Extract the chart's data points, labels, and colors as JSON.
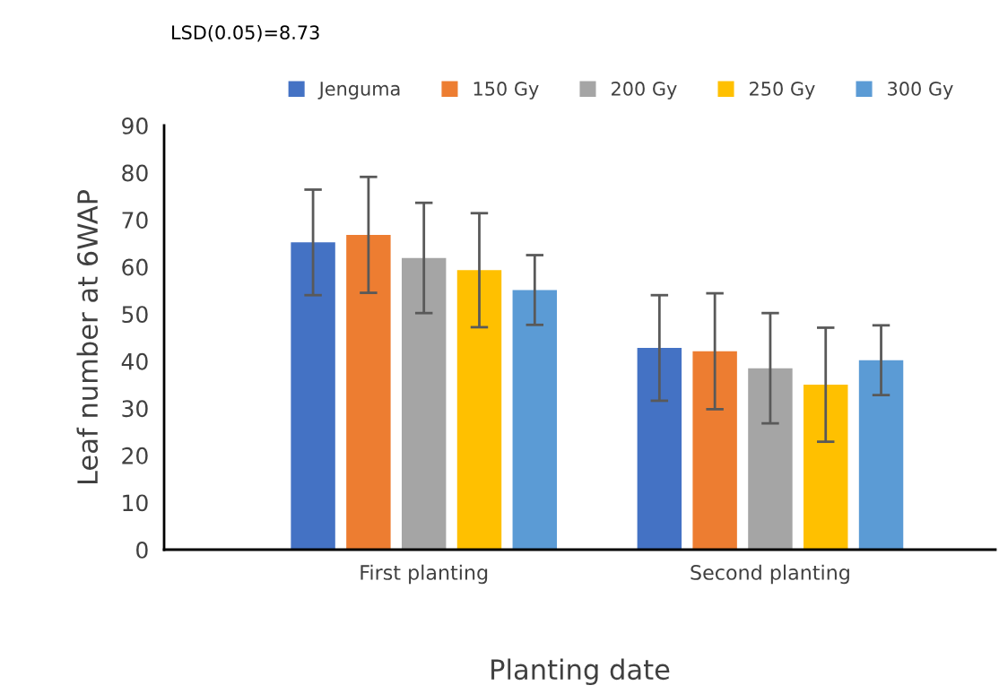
{
  "chart_data": {
    "type": "bar",
    "xlabel": "Planting date",
    "ylabel": "Leaf number at 6WAP",
    "categories": [
      "First planting",
      "Second planting"
    ],
    "series": [
      {
        "name": "Jenguma",
        "color": "#4472c4",
        "values": [
          65.2,
          42.8
        ],
        "errors": [
          11.2,
          11.2
        ]
      },
      {
        "name": "150 Gy",
        "color": "#ed7d31",
        "values": [
          66.8,
          42.1
        ],
        "errors": [
          12.3,
          12.3
        ]
      },
      {
        "name": "200 Gy",
        "color": "#a5a5a5",
        "values": [
          61.9,
          38.5
        ],
        "errors": [
          11.7,
          11.7
        ]
      },
      {
        "name": "250 Gy",
        "color": "#ffc000",
        "values": [
          59.3,
          35.0
        ],
        "errors": [
          12.1,
          12.1
        ]
      },
      {
        "name": "300 Gy",
        "color": "#5b9bd5",
        "values": [
          55.1,
          40.2
        ],
        "errors": [
          7.4,
          7.4
        ]
      }
    ],
    "ylim": [
      0,
      90
    ],
    "yticks": [
      0,
      10,
      20,
      30,
      40,
      50,
      60,
      70,
      80,
      90
    ],
    "annotations": [
      "LSD(0.05)=8.73"
    ],
    "legend": "top",
    "grid": false
  }
}
